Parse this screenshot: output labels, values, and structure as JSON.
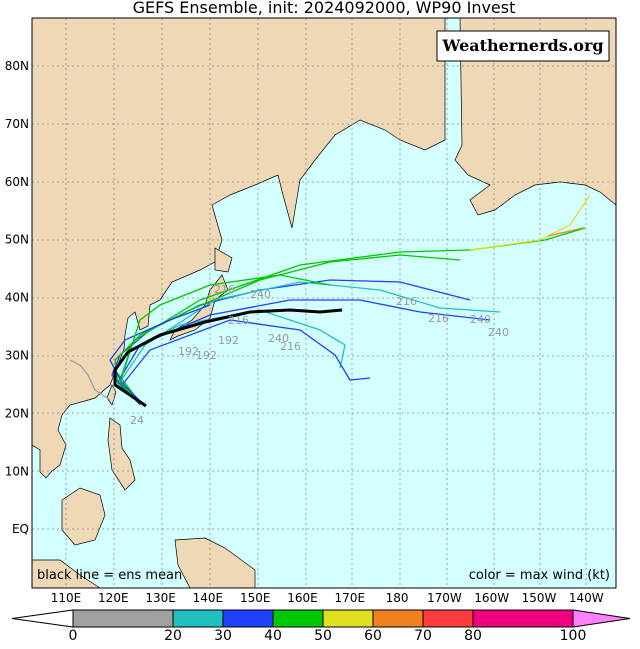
{
  "header": {
    "title": "GEFS Ensemble, init: 2024092000, WP90 Invest"
  },
  "brand": "Weathernerds.org",
  "map": {
    "lat_labels": [
      "80N",
      "70N",
      "60N",
      "50N",
      "40N",
      "30N",
      "20N",
      "10N",
      "EQ"
    ],
    "lon_labels": [
      "110E",
      "120E",
      "130E",
      "140E",
      "150E",
      "160E",
      "170E",
      "180",
      "170W",
      "160W",
      "150W",
      "140W"
    ],
    "track_labels": [
      "216",
      "216",
      "240",
      "240",
      "216",
      "240",
      "216",
      "192",
      "192",
      "192",
      "216",
      "240",
      "24"
    ]
  },
  "notes": {
    "left": "black line = ens mean",
    "right": "color = max wind (kt)"
  },
  "colorbar": {
    "range": [
      0,
      100
    ],
    "ticks": [
      0,
      20,
      30,
      40,
      50,
      60,
      70,
      80,
      100
    ],
    "under_color": "#ffffff",
    "over_color": "#ff80ff",
    "segments": [
      {
        "from": 0,
        "to": 20,
        "color": "#a0a0a0"
      },
      {
        "from": 20,
        "to": 30,
        "color": "#20c0c0"
      },
      {
        "from": 30,
        "to": 40,
        "color": "#2040ff"
      },
      {
        "from": 40,
        "to": 50,
        "color": "#00c800"
      },
      {
        "from": 50,
        "to": 60,
        "color": "#e0e020"
      },
      {
        "from": 60,
        "to": 70,
        "color": "#f08020"
      },
      {
        "from": 70,
        "to": 80,
        "color": "#ff3c3c"
      },
      {
        "from": 80,
        "to": 100,
        "color": "#f00080"
      }
    ]
  }
}
